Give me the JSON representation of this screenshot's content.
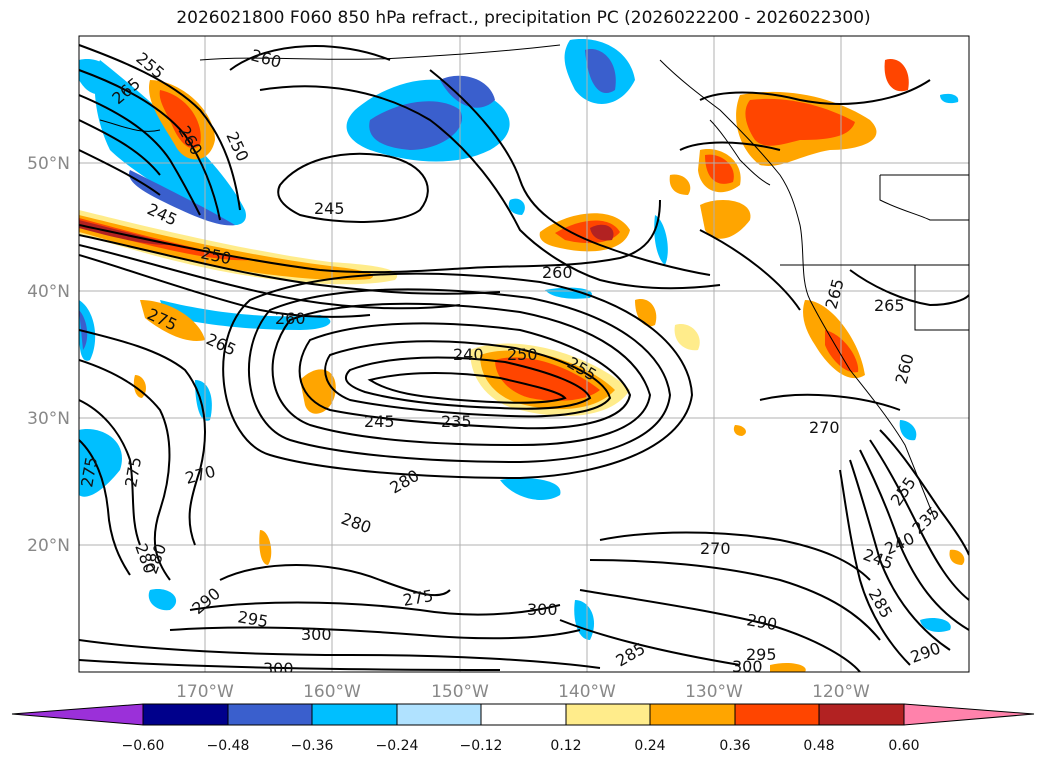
{
  "title": "2026021800 F060 850 hPa refract., precipitation PC (2026022200 - 2026022300)",
  "lat_labels": [
    "50°N",
    "40°N",
    "30°N",
    "20°N"
  ],
  "lon_labels": [
    "170°W",
    "160°W",
    "150°W",
    "140°W",
    "130°W",
    "120°W"
  ],
  "colorbar": {
    "tick_labels": [
      "−0.60",
      "−0.48",
      "−0.36",
      "−0.24",
      "−0.12",
      "0.12",
      "0.24",
      "0.36",
      "0.48",
      "0.60"
    ],
    "colors": [
      "#9b30d9",
      "#00008b",
      "#3a5fcd",
      "#00bfff",
      "#b0e2ff",
      "#ffffff",
      "#ffec8b",
      "#ffa500",
      "#ff4500",
      "#b22222",
      "#ff82ab"
    ]
  },
  "contour_labels": [
    "255",
    "260",
    "265",
    "260",
    "250",
    "245",
    "245",
    "250",
    "260",
    "260",
    "275",
    "265",
    "240",
    "250",
    "255",
    "245",
    "235",
    "265",
    "265",
    "260",
    "270",
    "275",
    "275",
    "270",
    "280",
    "280",
    "280",
    "280",
    "290",
    "295",
    "300",
    "300",
    "275",
    "300",
    "285",
    "270",
    "290",
    "295",
    "300",
    "285",
    "245",
    "240",
    "235",
    "255",
    "290"
  ]
}
